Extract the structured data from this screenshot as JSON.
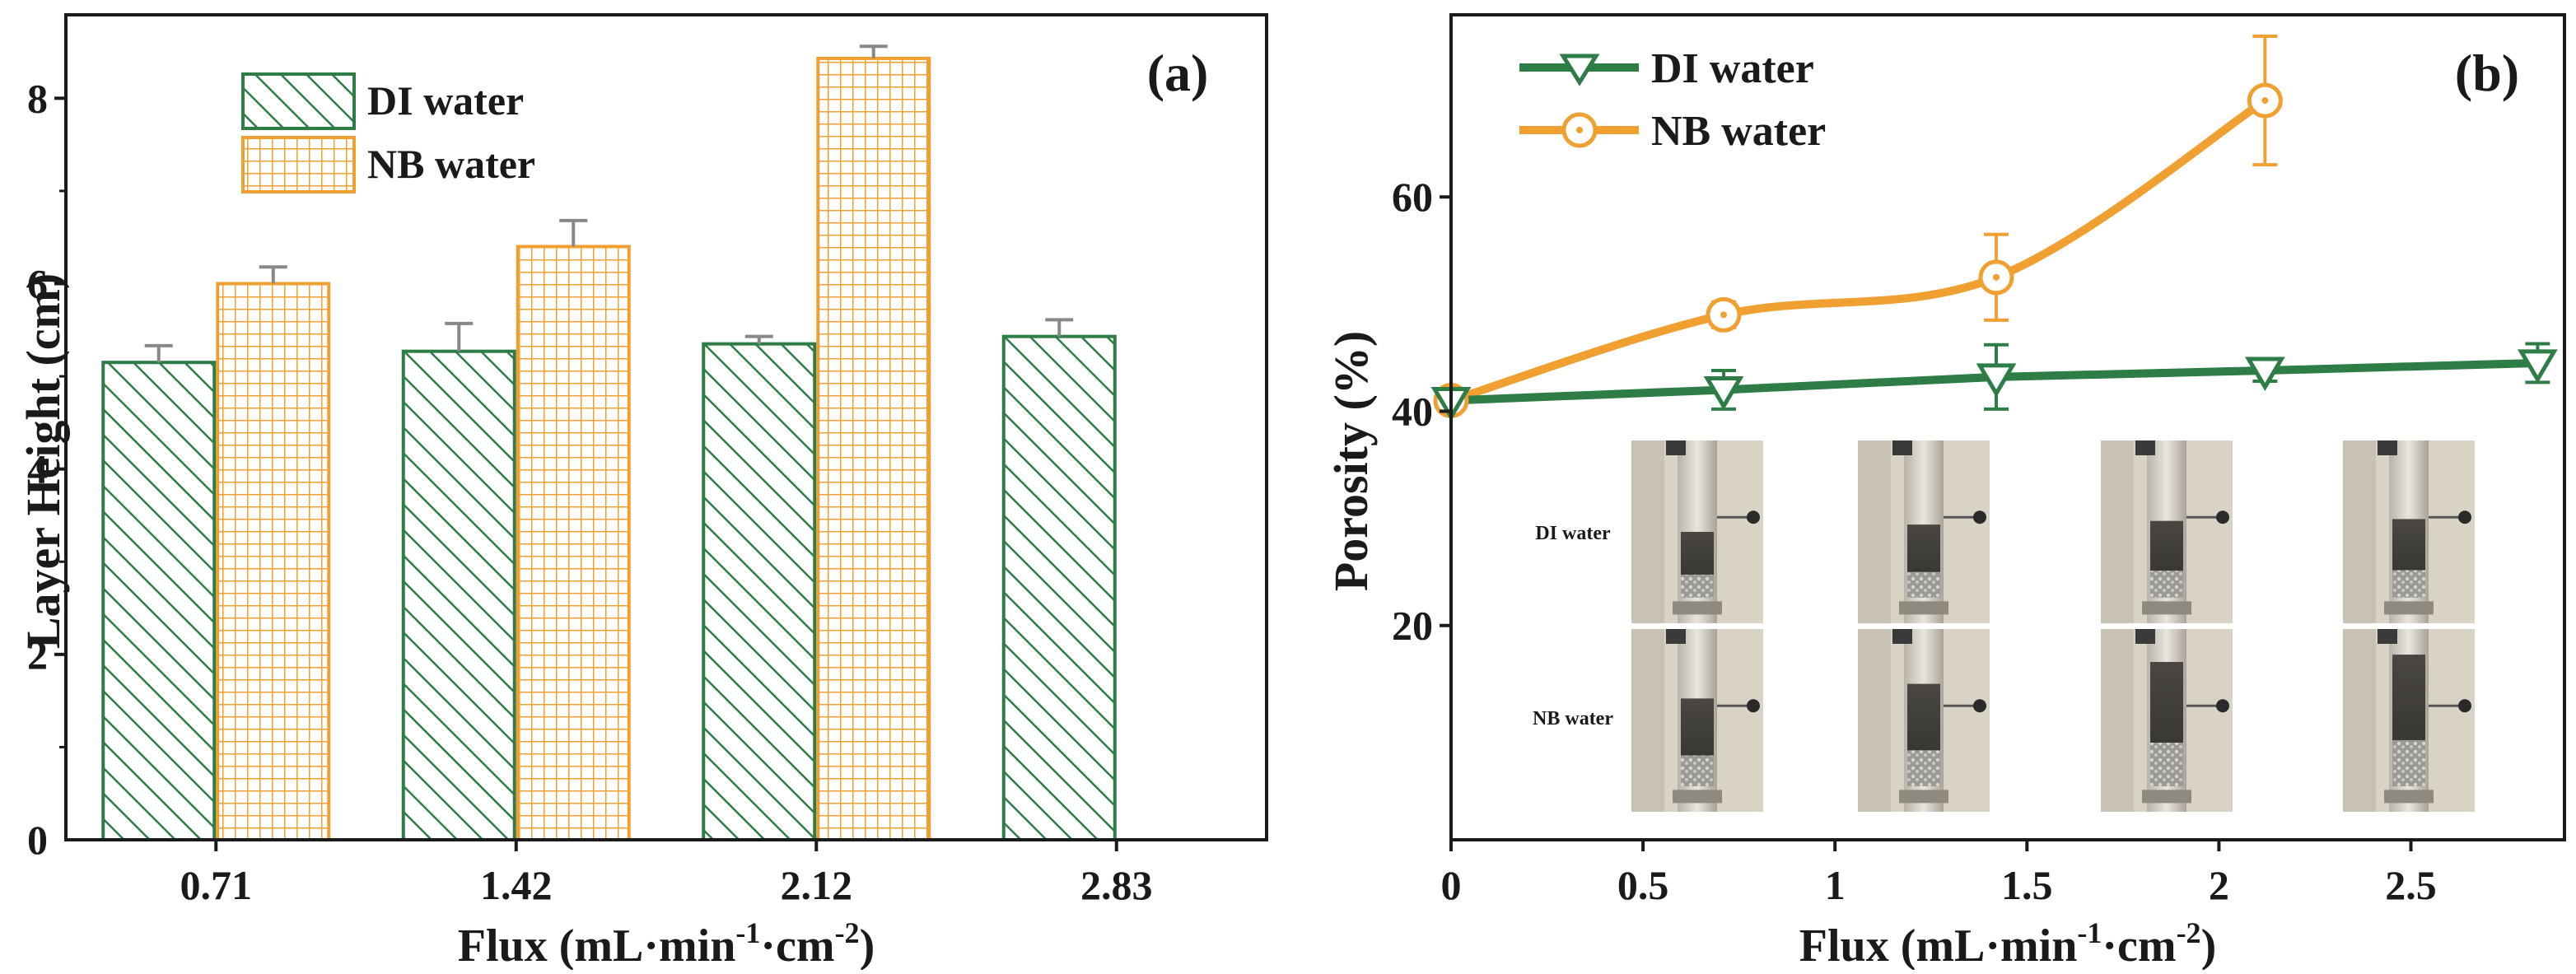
{
  "colors": {
    "di": "#2E7D46",
    "nb": "#F0A030",
    "axis": "#1a1a1a",
    "error": "#888888"
  },
  "chart_data": [
    {
      "type": "bar",
      "panel_label": "(a)",
      "xlabel_main": "Flux (mL·min",
      "xlabel_sup1": "-1",
      "xlabel_mid": "·cm",
      "xlabel_sup2": "-2",
      "xlabel_end": ")",
      "ylabel": "Layer Height (cm)",
      "ylim": [
        0,
        8.9
      ],
      "yticks": [
        "0",
        "2",
        "4",
        "6",
        "8"
      ],
      "categories": [
        "0.71",
        "1.42",
        "2.12",
        "2.83"
      ],
      "legend": [
        "DI water",
        "NB water"
      ],
      "series": [
        {
          "name": "DI water",
          "values": [
            5.15,
            5.27,
            5.35,
            5.43
          ],
          "errors": [
            0.18,
            0.3,
            0.08,
            0.18
          ],
          "pattern": "diagonal-hatch"
        },
        {
          "name": "NB water",
          "values": [
            6.0,
            6.4,
            8.43,
            null
          ],
          "errors": [
            0.18,
            0.28,
            0.13,
            null
          ],
          "pattern": "grid-hatch"
        }
      ]
    },
    {
      "type": "line",
      "panel_label": "(b)",
      "xlabel_main": "Flux (mL·min",
      "xlabel_sup1": "-1",
      "xlabel_mid": "·cm",
      "xlabel_sup2": "-2",
      "xlabel_end": ")",
      "ylabel": "Porosity (%)",
      "xlim": [
        0,
        2.9
      ],
      "ylim": [
        0,
        77
      ],
      "xticks": [
        "0",
        "0.5",
        "1",
        "1.5",
        "2",
        "2.5"
      ],
      "yticks": [
        "20",
        "40",
        "60"
      ],
      "legend": [
        "DI water",
        "NB water"
      ],
      "series": [
        {
          "name": "DI water",
          "marker": "triangle-down",
          "x": [
            0,
            0.71,
            1.42,
            2.12,
            2.83
          ],
          "y": [
            41.0,
            42.0,
            43.2,
            43.8,
            44.5
          ],
          "errors": [
            0,
            1.8,
            3.0,
            1.0,
            1.8
          ]
        },
        {
          "name": "NB water",
          "marker": "circle-dot",
          "x": [
            0,
            0.71,
            1.42,
            2.12
          ],
          "y": [
            41.0,
            49.0,
            52.5,
            69.0
          ],
          "errors": [
            0,
            1.2,
            4.0,
            6.0
          ]
        }
      ],
      "inset": {
        "row_labels": [
          "DI water",
          "NB water"
        ],
        "columns": 4
      }
    }
  ]
}
